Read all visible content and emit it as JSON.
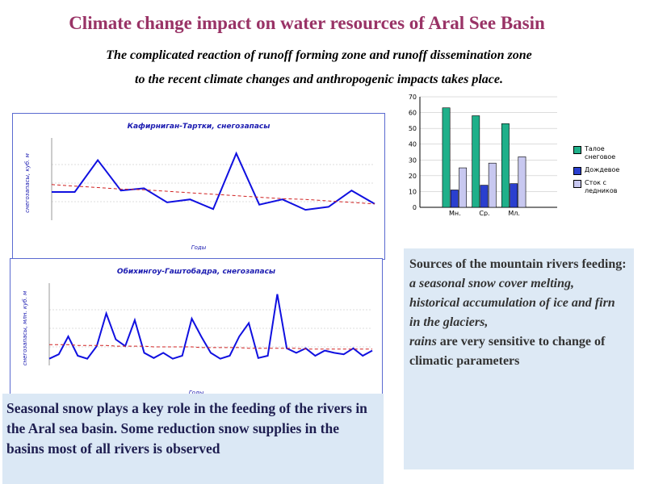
{
  "slide": {
    "title": "Climate change impact on water resources of Aral See Basin",
    "subtitle": [
      "The complicated reaction of runoff forming zone and runoff dissemination zone",
      "to the recent climate changes and  anthropogenic impacts takes place."
    ],
    "left_note": "Seasonal snow plays a key role in the feeding of the rivers in the Aral sea basin. Some reduction snow supplies in the basins most of all  rivers is observed",
    "right_note": {
      "heading": "Sources of the mountain rivers feeding:",
      "items": [
        "a seasonal snow cover melting,",
        "historical accumulation of ice and firn in the glaciers,"
      ],
      "lead": "rains",
      "rest": "are very sensitive to change of climatic parameters"
    }
  },
  "chart_data": [
    {
      "type": "line",
      "title": "Кафирниган-Тартки, снегозапасы",
      "y_label": "снегозапасы, куб. м",
      "x_label": "Годы",
      "categories": [
        null,
        null,
        null,
        null,
        null,
        null,
        null,
        null,
        null,
        null,
        null,
        null,
        null,
        null,
        null
      ],
      "ylim": [
        0,
        100
      ],
      "series": [
        {
          "color": "#1010e0",
          "values": [
            38,
            38,
            81,
            40,
            43,
            24,
            28,
            15,
            90,
            21,
            28,
            14,
            18,
            40,
            22
          ]
        },
        {
          "color": "#d02020",
          "dashed": true,
          "values": [
            48,
            46,
            44,
            42,
            41,
            39,
            37,
            35,
            33,
            31,
            29,
            28,
            26,
            24,
            22
          ]
        }
      ]
    },
    {
      "type": "line",
      "title": "Обихингоу-Гаштобадра, снегозапасы",
      "y_label": "снегозапасы, млн. куб. м",
      "x_label": "Годы",
      "categories": [
        null,
        null,
        null,
        null,
        null,
        null,
        null,
        null,
        null,
        null,
        null,
        null,
        null,
        null,
        null,
        null,
        null,
        null,
        null,
        null,
        null,
        null,
        null,
        null,
        null,
        null,
        null,
        null,
        null,
        null,
        null,
        null,
        null,
        null,
        null
      ],
      "ylim": [
        0,
        100
      ],
      "series": [
        {
          "color": "#1010e0",
          "values": [
            9,
            15,
            39,
            13,
            9,
            26,
            70,
            35,
            26,
            61,
            17,
            10,
            17,
            9,
            13,
            63,
            39,
            17,
            9,
            13,
            39,
            57,
            10,
            13,
            96,
            23,
            17,
            23,
            13,
            20,
            17,
            15,
            23,
            13,
            20
          ]
        },
        {
          "color": "#d02020",
          "dashed": true,
          "values": [
            28,
            28,
            28,
            27,
            27,
            27,
            27,
            26,
            26,
            26,
            26,
            25,
            25,
            25,
            25,
            25,
            24,
            24,
            24,
            24,
            24,
            23,
            23,
            23,
            23,
            23,
            23,
            22,
            22,
            22,
            22,
            22,
            22,
            22,
            22
          ]
        }
      ]
    },
    {
      "type": "bar",
      "categories": [
        "Мн.",
        "Ср.",
        "Мл."
      ],
      "ylim": [
        0,
        70
      ],
      "yticks": [
        0,
        10,
        20,
        30,
        40,
        50,
        60,
        70
      ],
      "legend": "right",
      "series": [
        {
          "name": "Талое снеговое",
          "color": "#1fb08a",
          "values": [
            63,
            58,
            53
          ]
        },
        {
          "name": "Дождевое",
          "color": "#2a3fcf",
          "values": [
            11,
            14,
            15
          ]
        },
        {
          "name": "Сток с ледников",
          "color": "#c8c8f0",
          "values": [
            25,
            28,
            32
          ]
        }
      ]
    }
  ]
}
